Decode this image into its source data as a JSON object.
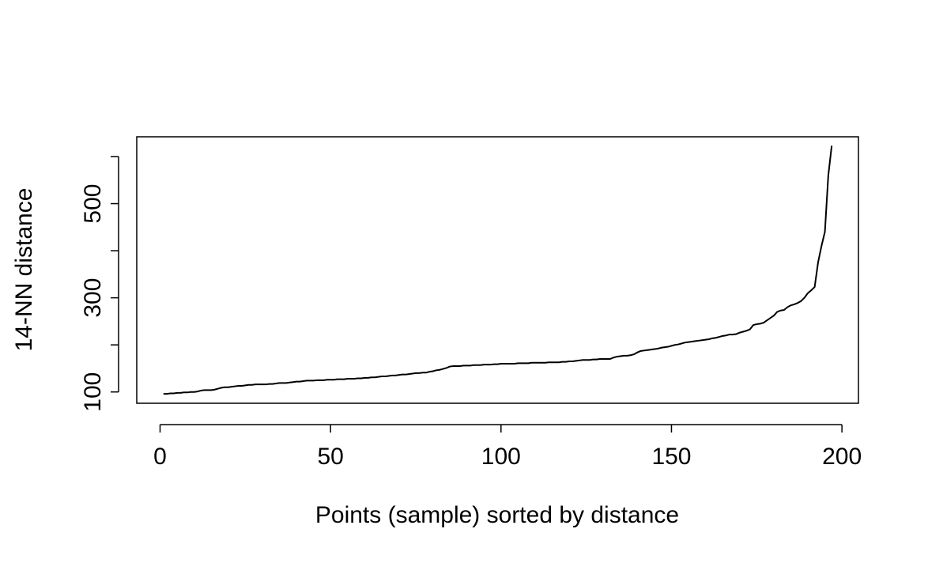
{
  "chart_data": {
    "type": "line",
    "xlabel": "Points (sample) sorted by distance",
    "ylabel": "14-NN distance",
    "x": [
      1,
      2,
      3,
      4,
      5,
      6,
      7,
      8,
      9,
      10,
      11,
      12,
      13,
      14,
      15,
      16,
      17,
      18,
      19,
      20,
      21,
      22,
      23,
      24,
      25,
      26,
      27,
      28,
      29,
      30,
      31,
      32,
      33,
      34,
      35,
      36,
      37,
      38,
      39,
      40,
      41,
      42,
      43,
      44,
      45,
      46,
      47,
      48,
      49,
      50,
      51,
      52,
      53,
      54,
      55,
      56,
      57,
      58,
      59,
      60,
      61,
      62,
      63,
      64,
      65,
      66,
      67,
      68,
      69,
      70,
      71,
      72,
      73,
      74,
      75,
      76,
      77,
      78,
      79,
      80,
      81,
      82,
      83,
      84,
      85,
      86,
      87,
      88,
      89,
      90,
      91,
      92,
      93,
      94,
      95,
      96,
      97,
      98,
      99,
      100,
      101,
      102,
      103,
      104,
      105,
      106,
      107,
      108,
      109,
      110,
      111,
      112,
      113,
      114,
      115,
      116,
      117,
      118,
      119,
      120,
      121,
      122,
      123,
      124,
      125,
      126,
      127,
      128,
      129,
      130,
      131,
      132,
      133,
      134,
      135,
      136,
      137,
      138,
      139,
      140,
      141,
      142,
      143,
      144,
      145,
      146,
      147,
      148,
      149,
      150,
      151,
      152,
      153,
      154,
      155,
      156,
      157,
      158,
      159,
      160,
      161,
      162,
      163,
      164,
      165,
      166,
      167,
      168,
      169,
      170,
      171,
      172,
      173,
      174,
      175,
      176,
      177,
      178,
      179,
      180,
      181,
      182,
      183,
      184,
      185,
      186,
      187,
      188,
      189,
      190,
      191,
      192,
      193,
      194,
      195,
      196,
      197
    ],
    "series": [
      {
        "color": "#000000",
        "values": [
          96,
          96,
          97,
          97,
          98,
          98,
          99,
          99,
          100,
          100,
          101,
          103,
          104,
          104,
          104,
          105,
          107,
          109,
          110,
          110,
          111,
          112,
          113,
          113,
          114,
          115,
          115,
          116,
          116,
          116,
          116,
          117,
          117,
          118,
          119,
          119,
          119,
          120,
          121,
          122,
          122,
          123,
          124,
          124,
          124,
          125,
          125,
          125,
          126,
          126,
          126,
          127,
          127,
          127,
          128,
          128,
          128,
          129,
          129,
          130,
          130,
          131,
          131,
          132,
          133,
          133,
          134,
          135,
          135,
          136,
          137,
          137,
          138,
          139,
          140,
          140,
          141,
          141,
          143,
          144,
          146,
          147,
          149,
          151,
          154,
          155,
          155,
          155,
          156,
          156,
          156,
          157,
          157,
          157,
          158,
          158,
          158,
          159,
          159,
          160,
          160,
          160,
          160,
          160,
          161,
          161,
          161,
          161,
          162,
          162,
          162,
          162,
          162,
          163,
          163,
          163,
          163,
          164,
          164,
          165,
          165,
          166,
          167,
          168,
          168,
          168,
          169,
          169,
          170,
          170,
          170,
          170,
          173,
          175,
          176,
          177,
          177,
          178,
          180,
          184,
          187,
          188,
          189,
          190,
          191,
          192,
          194,
          195,
          196,
          198,
          200,
          201,
          203,
          205,
          206,
          207,
          208,
          209,
          210,
          211,
          212,
          214,
          215,
          217,
          219,
          220,
          222,
          222,
          223,
          226,
          228,
          230,
          233,
          242,
          244,
          245,
          247,
          252,
          257,
          262,
          270,
          273,
          274,
          280,
          284,
          286,
          289,
          293,
          300,
          310,
          316,
          323,
          375,
          410,
          440,
          560,
          623
        ]
      }
    ],
    "xlim": [
      -6.84,
      204.84
    ],
    "xticks": [
      0,
      50,
      100,
      150,
      200
    ],
    "ylim": [
      76,
      642
    ],
    "yticks": [
      100,
      {
        "value": 200,
        "label": null
      },
      300,
      {
        "value": 400,
        "label": null
      },
      500,
      {
        "value": 600,
        "label": null
      }
    ]
  }
}
